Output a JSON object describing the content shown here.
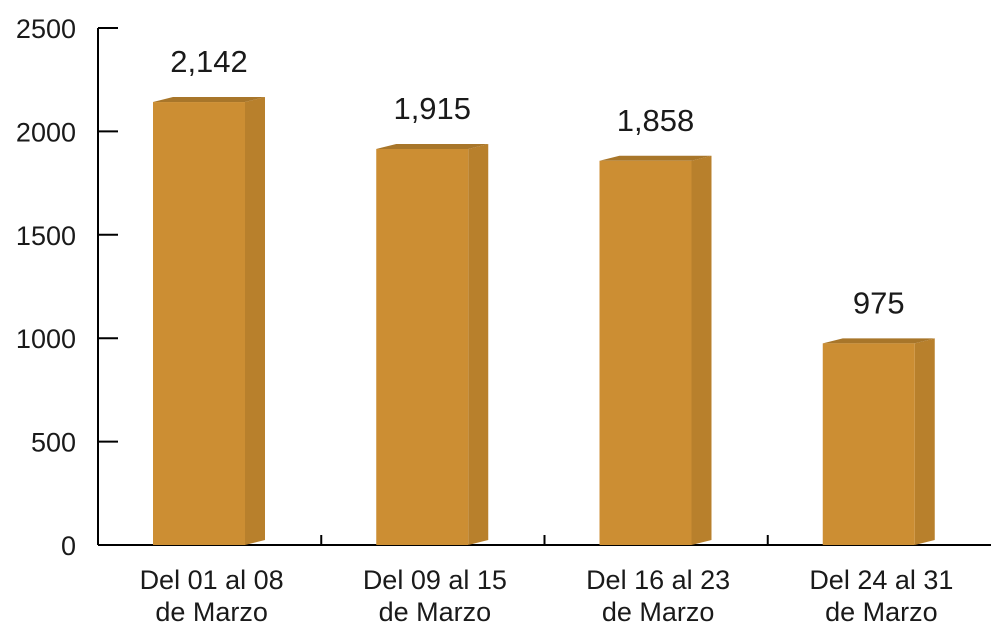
{
  "chart_data": {
    "type": "bar",
    "categories": [
      [
        "Del 01 al 08",
        "de Marzo"
      ],
      [
        "Del 09 al 15",
        "de Marzo"
      ],
      [
        "Del 16 al 23",
        "de Marzo"
      ],
      [
        "Del 24 al 31",
        "de Marzo"
      ]
    ],
    "values": [
      2142,
      1915,
      1858,
      975
    ],
    "data_labels": [
      "2,142",
      "1,915",
      "1,858",
      "975"
    ],
    "ylim": [
      0,
      2500
    ],
    "yticks": [
      0,
      500,
      1000,
      1500,
      2000,
      2500
    ],
    "title": "",
    "xlabel": "",
    "ylabel": "",
    "grid": false,
    "legend": "none",
    "style": "3d-bar",
    "colors": {
      "bar_front": "#CC8E33",
      "bar_side": "#B8802C",
      "bar_top": "#A8762A",
      "axis": "#000000"
    }
  }
}
